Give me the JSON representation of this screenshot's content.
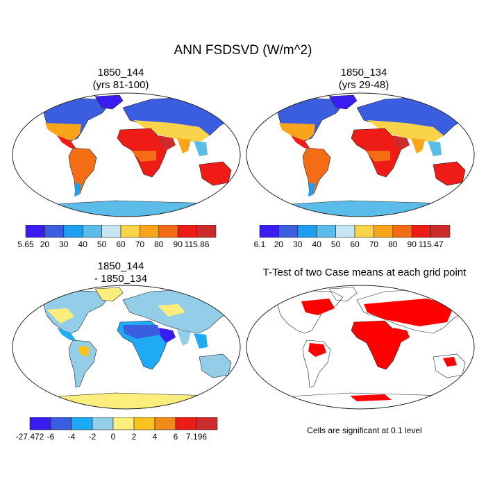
{
  "title": "ANN FSDSVD (W/m^2)",
  "panels": [
    {
      "line1": "1850_144",
      "line2": "(yrs 81-100)"
    },
    {
      "line1": "1850_134",
      "line2": "(yrs 29-48)"
    },
    {
      "line1": "1850_144",
      "line2": "- 1850_134"
    },
    {
      "line1": "T-Test of two Case means at each grid point"
    }
  ],
  "note": "Cells are significant at 0.1 level",
  "colorbars": [
    {
      "labels": [
        "5.65",
        "20",
        "30",
        "40",
        "50",
        "60",
        "70",
        "80",
        "90",
        "115.86"
      ],
      "colors": [
        "#3a1cf2",
        "#3b5ee0",
        "#1e9ef0",
        "#5bbbe9",
        "#c6e6f2",
        "#f9d44a",
        "#f9a51c",
        "#f46d14",
        "#ef1b16",
        "#cc2b2b"
      ]
    },
    {
      "labels": [
        "6.1",
        "20",
        "30",
        "40",
        "50",
        "60",
        "70",
        "80",
        "90",
        "115.47"
      ],
      "colors": [
        "#3a1cf2",
        "#3b5ee0",
        "#1e9ef0",
        "#5bbbe9",
        "#c6e6f2",
        "#f9d44a",
        "#f9a51c",
        "#f46d14",
        "#ef1b16",
        "#cc2b2b"
      ]
    },
    {
      "labels": [
        "-27.472",
        "-6",
        "-4",
        "-2",
        "0",
        "2",
        "4",
        "6",
        "7.196"
      ],
      "colors": [
        "#3a1cf2",
        "#3b5ee0",
        "#1eaaf5",
        "#93cde8",
        "#fbee7c",
        "#f9c21c",
        "#f28a1a",
        "#ee1b16",
        "#cc2b2b"
      ]
    }
  ]
}
